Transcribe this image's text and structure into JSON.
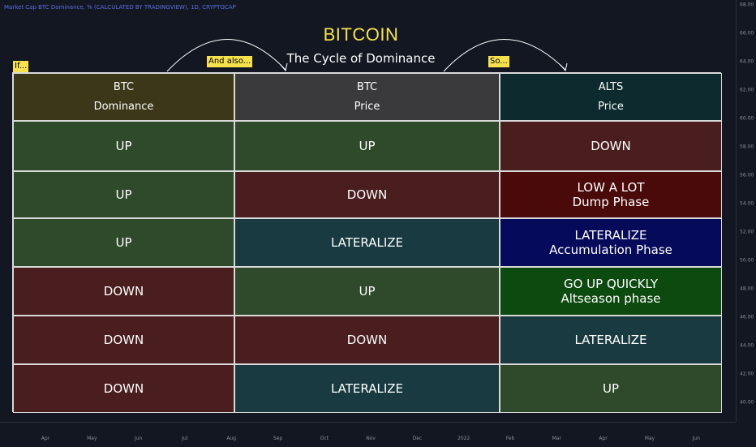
{
  "chart_header": "Market Cap BTC Dominance, % (CALCULATED BY TRADINGVIEW), 1D, CRYPTOCAP",
  "title": "BITCOIN",
  "subtitle": "The Cycle of Dominance",
  "tags": {
    "if": "If...",
    "and_also": "And also...",
    "so": "So..."
  },
  "headers": [
    {
      "line1": "BTC",
      "line2": "Dominance",
      "color": "#3b3718"
    },
    {
      "line1": "BTC",
      "line2": "Price",
      "color": "#3a3a3c"
    },
    {
      "line1": "ALTS",
      "line2": "Price",
      "color": "#0d2b2e"
    }
  ],
  "rows": [
    [
      {
        "text": "UP",
        "sub": "",
        "color": "#2e4a2a"
      },
      {
        "text": "UP",
        "sub": "",
        "color": "#2e4a2a"
      },
      {
        "text": "DOWN",
        "sub": "",
        "color": "#4a1e1e"
      }
    ],
    [
      {
        "text": "UP",
        "sub": "",
        "color": "#2e4a2a"
      },
      {
        "text": "DOWN",
        "sub": "",
        "color": "#4a1e1e"
      },
      {
        "text": "LOW A LOT",
        "sub": "Dump Phase",
        "color": "#4a0a0a"
      }
    ],
    [
      {
        "text": "UP",
        "sub": "",
        "color": "#2e4a2a"
      },
      {
        "text": "LATERALIZE",
        "sub": "",
        "color": "#183a40"
      },
      {
        "text": "LATERALIZE",
        "sub": "Accumulation Phase",
        "color": "#060a5a"
      }
    ],
    [
      {
        "text": "DOWN",
        "sub": "",
        "color": "#4a1e1e"
      },
      {
        "text": "UP",
        "sub": "",
        "color": "#2e4a2a"
      },
      {
        "text": "GO UP QUICKLY",
        "sub": "Altseason phase",
        "color": "#0d4a10"
      }
    ],
    [
      {
        "text": "DOWN",
        "sub": "",
        "color": "#4a1e1e"
      },
      {
        "text": "DOWN",
        "sub": "",
        "color": "#4a1e1e"
      },
      {
        "text": "LATERALIZE",
        "sub": "",
        "color": "#183a40"
      }
    ],
    [
      {
        "text": "DOWN",
        "sub": "",
        "color": "#4a1e1e"
      },
      {
        "text": "LATERALIZE",
        "sub": "",
        "color": "#183a40"
      },
      {
        "text": "UP",
        "sub": "",
        "color": "#2e4a2a"
      }
    ]
  ],
  "y_axis_ticks": [
    "68.00",
    "66.00",
    "64.00",
    "62.00",
    "60.00",
    "58.00",
    "56.00",
    "54.00",
    "52.00",
    "50.00",
    "48.00",
    "46.00",
    "44.00",
    "42.00",
    "40.00"
  ],
  "x_axis_ticks": [
    "Apr",
    "May",
    "Jun",
    "Jul",
    "Aug",
    "Sep",
    "Oct",
    "Nov",
    "Dec",
    "2022",
    "Feb",
    "Mar",
    "Apr",
    "May",
    "Jun"
  ]
}
